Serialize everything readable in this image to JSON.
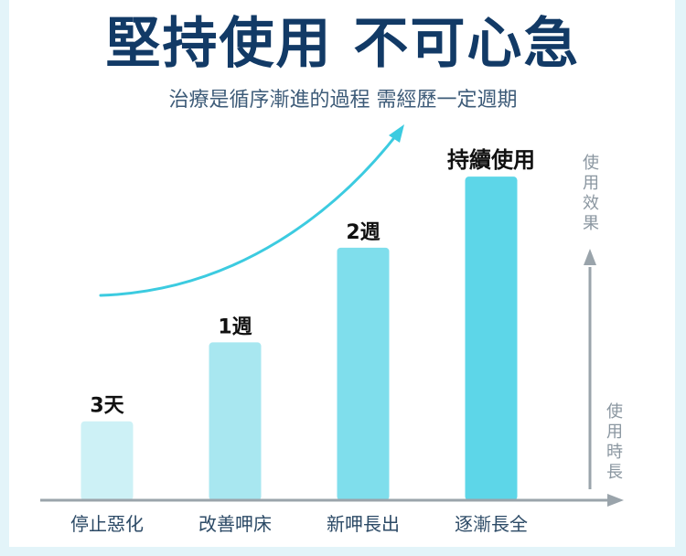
{
  "header": {
    "title": "堅持使用 不可心急",
    "subtitle": "治療是循序漸進的過程 需經歷一定週期"
  },
  "chart_data": {
    "type": "bar",
    "title": "",
    "categories": [
      "停止惡化",
      "改善呷床",
      "新呷長出",
      "逐漸長全"
    ],
    "data_labels": [
      "3天",
      "1週",
      "2週",
      "持續使用"
    ],
    "values": [
      1,
      2,
      3.2,
      4.1
    ],
    "ylabel": "使用效果",
    "xlabel": "使用時長",
    "ylim": [
      0,
      4.6
    ],
    "grid": false,
    "legend": "none",
    "colors": [
      "#cdf1f6",
      "#a8e7f0",
      "#7fdeec",
      "#5dd6e8"
    ],
    "axis_color": "#9aa4ab",
    "trend_color": "#3ccbe0"
  }
}
